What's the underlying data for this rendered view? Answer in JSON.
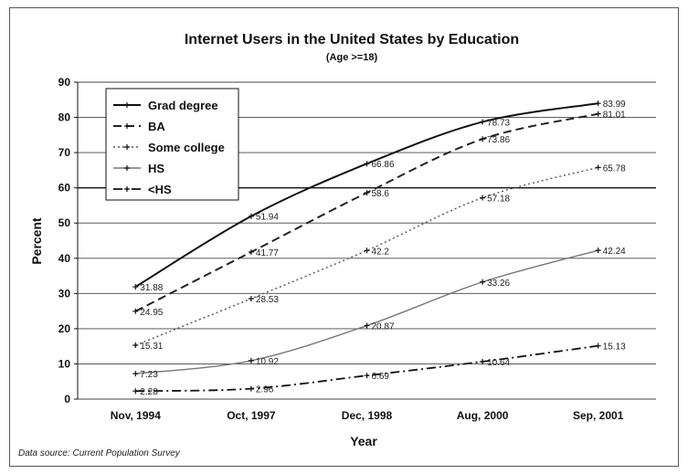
{
  "chart_data": {
    "type": "line",
    "title": "Internet Users in the United States by Education",
    "subtitle": "(Age >=18)",
    "xlabel": "Year",
    "ylabel": "Percent",
    "ylim": [
      0,
      90
    ],
    "yticks": [
      0,
      10,
      20,
      30,
      40,
      50,
      60,
      70,
      80,
      90
    ],
    "categories": [
      "Nov, 1994",
      "Oct, 1997",
      "Dec, 1998",
      "Aug, 2000",
      "Sep, 2001"
    ],
    "grid": "horizontal",
    "legend_position": "top-left",
    "source": "Data source: Current Population Survey",
    "series": [
      {
        "name": "Grad degree",
        "values": [
          31.88,
          51.94,
          66.86,
          78.73,
          83.99
        ],
        "labels": [
          "31.88",
          "51.94",
          "66.86",
          "78.73",
          "83.99"
        ],
        "color": "#111111",
        "dash": "solid"
      },
      {
        "name": "BA",
        "values": [
          24.95,
          41.77,
          58.6,
          73.86,
          81.01
        ],
        "labels": [
          "24.95",
          "41.77",
          "58.6",
          "73.86",
          "81.01"
        ],
        "color": "#222222",
        "dash": "dashed"
      },
      {
        "name": "Some college",
        "values": [
          15.31,
          28.53,
          42.2,
          57.18,
          65.78
        ],
        "labels": [
          "15.31",
          "28.53",
          "42.2",
          "57.18",
          "65.78"
        ],
        "color": "#555555",
        "dash": "dotted"
      },
      {
        "name": "HS",
        "values": [
          7.23,
          10.92,
          20.87,
          33.26,
          42.24
        ],
        "labels": [
          "7.23",
          "10.92",
          "20.87",
          "33.26",
          "42.24"
        ],
        "color": "#777777",
        "dash": "solid-thin"
      },
      {
        "name": "<HS",
        "values": [
          2.28,
          2.96,
          6.69,
          10.64,
          15.13
        ],
        "labels": [
          "2.28",
          "2.96",
          "6.69",
          "10.64",
          "15.13"
        ],
        "color": "#111111",
        "dash": "dash-dot"
      }
    ]
  }
}
